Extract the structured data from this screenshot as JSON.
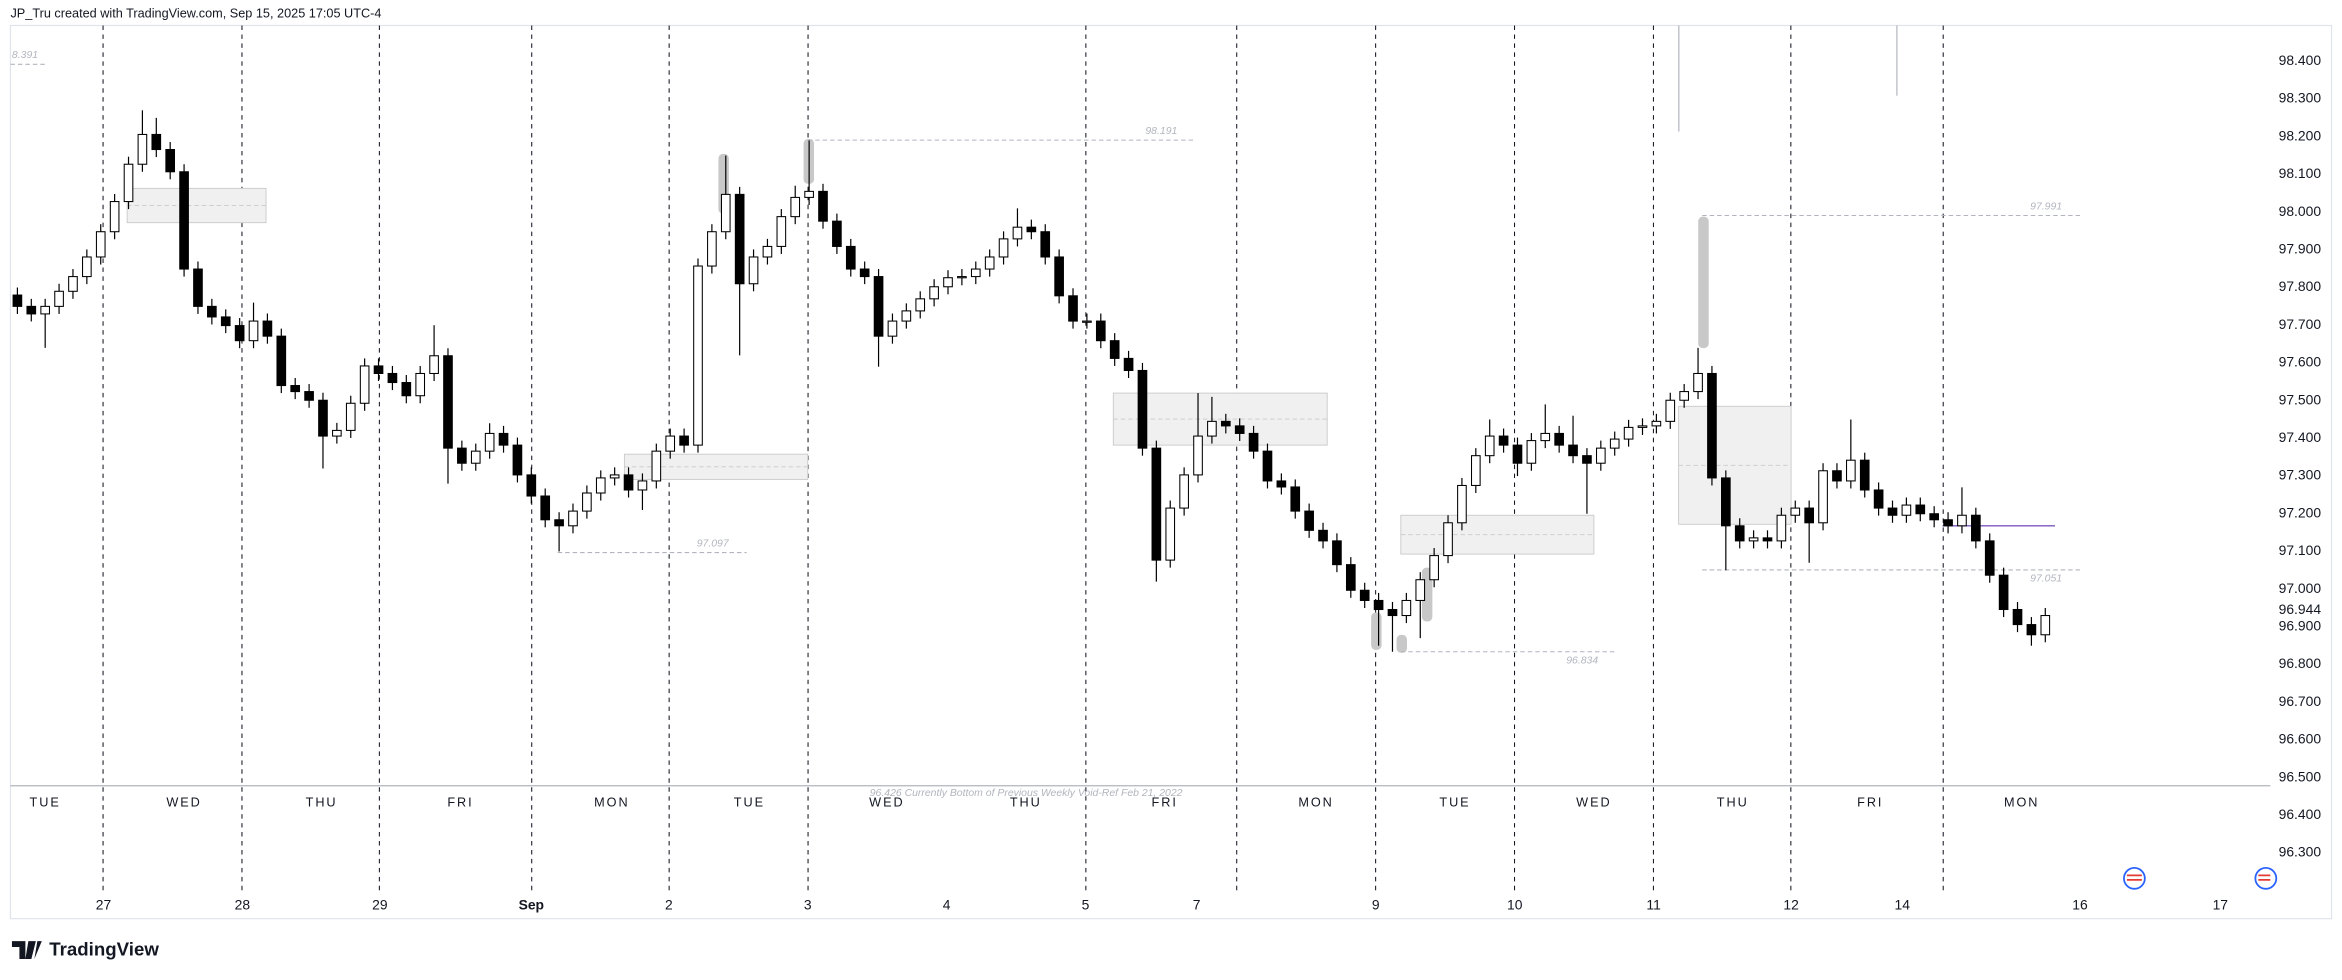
{
  "header": "JP_Tru created with TradingView.com, Sep 15, 2025 17:05 UTC-4",
  "brand": "TradingView",
  "chart_data": {
    "type": "candlestick",
    "open": [
      97.78,
      97.75,
      97.73,
      97.75,
      97.79,
      97.829,
      97.881,
      97.948,
      98.028,
      98.127,
      98.206,
      98.166,
      98.107,
      97.849,
      97.75,
      97.722,
      97.699,
      97.659,
      97.711,
      97.671,
      97.54,
      97.524,
      97.501,
      97.406,
      97.421,
      97.493,
      97.592,
      97.572,
      97.548,
      97.513,
      97.572,
      97.619,
      97.374,
      97.334,
      97.366,
      97.413,
      97.382,
      97.303,
      97.247,
      97.184,
      97.168,
      97.207,
      97.255,
      97.295,
      97.303,
      97.263,
      97.287,
      97.366,
      97.406,
      97.382,
      97.857,
      97.948,
      98.047,
      97.81,
      97.881,
      97.909,
      97.988,
      98.039,
      98.055,
      97.976,
      97.909,
      97.849,
      97.829,
      97.671,
      97.711,
      97.738,
      97.77,
      97.802,
      97.826,
      97.829,
      97.849,
      97.881,
      97.929,
      97.96,
      97.948,
      97.881,
      97.778,
      97.711,
      97.711,
      97.659,
      97.612,
      97.58,
      97.374,
      97.077,
      97.215,
      97.303,
      97.406,
      97.445,
      97.433,
      97.413,
      97.366,
      97.287,
      97.271,
      97.207,
      97.156,
      97.128,
      97.065,
      96.997,
      96.97,
      96.946,
      96.93,
      96.97,
      97.025,
      97.089,
      97.176,
      97.275,
      97.354,
      97.406,
      97.382,
      97.334,
      97.394,
      97.413,
      97.382,
      97.354,
      97.334,
      97.374,
      97.398,
      97.429,
      97.433,
      97.445,
      97.501,
      97.524,
      97.572,
      97.295,
      97.168,
      97.128,
      97.136,
      97.128,
      97.196,
      97.215,
      97.176,
      97.314,
      97.287,
      97.342,
      97.263,
      97.215,
      97.196,
      97.223,
      97.2,
      97.184,
      97.168,
      97.196,
      97.128,
      97.037,
      96.946,
      96.906,
      96.879
    ],
    "high": [
      97.8,
      97.77,
      97.77,
      97.81,
      97.849,
      97.901,
      97.968,
      98.048,
      98.147,
      98.27,
      98.25,
      98.186,
      98.127,
      97.869,
      97.77,
      97.742,
      97.719,
      97.76,
      97.731,
      97.691,
      97.56,
      97.544,
      97.521,
      97.441,
      97.513,
      97.612,
      97.612,
      97.592,
      97.568,
      97.592,
      97.7,
      97.639,
      97.394,
      97.386,
      97.44,
      97.433,
      97.402,
      97.323,
      97.267,
      97.204,
      97.227,
      97.275,
      97.315,
      97.323,
      97.323,
      97.307,
      97.386,
      97.426,
      97.426,
      97.877,
      97.968,
      98.15,
      98.067,
      97.901,
      97.929,
      98.008,
      98.07,
      98.19,
      98.075,
      97.996,
      97.929,
      97.869,
      97.849,
      97.731,
      97.758,
      97.79,
      97.822,
      97.846,
      97.849,
      97.869,
      97.901,
      97.949,
      98.01,
      97.98,
      97.968,
      97.901,
      97.798,
      97.731,
      97.731,
      97.679,
      97.632,
      97.6,
      97.394,
      97.235,
      97.323,
      97.52,
      97.51,
      97.465,
      97.453,
      97.433,
      97.386,
      97.307,
      97.291,
      97.227,
      97.176,
      97.148,
      97.085,
      97.017,
      96.99,
      96.966,
      96.99,
      97.045,
      97.109,
      97.196,
      97.295,
      97.374,
      97.45,
      97.426,
      97.402,
      97.414,
      97.49,
      97.433,
      97.46,
      97.374,
      97.394,
      97.418,
      97.449,
      97.453,
      97.465,
      97.521,
      97.544,
      97.64,
      97.592,
      97.315,
      97.188,
      97.156,
      97.156,
      97.216,
      97.235,
      97.235,
      97.334,
      97.334,
      97.45,
      97.362,
      97.283,
      97.235,
      97.243,
      97.243,
      97.22,
      97.204,
      97.27,
      97.216,
      97.148,
      97.057,
      96.966,
      96.926,
      96.95
    ],
    "low": [
      97.73,
      97.71,
      97.64,
      97.73,
      97.77,
      97.809,
      97.861,
      97.928,
      98.008,
      98.107,
      98.146,
      98.087,
      97.829,
      97.73,
      97.702,
      97.679,
      97.639,
      97.639,
      97.651,
      97.52,
      97.504,
      97.481,
      97.32,
      97.386,
      97.401,
      97.473,
      97.552,
      97.528,
      97.493,
      97.493,
      97.552,
      97.28,
      97.314,
      97.314,
      97.346,
      97.362,
      97.283,
      97.227,
      97.164,
      97.1,
      97.148,
      97.187,
      97.235,
      97.275,
      97.243,
      97.21,
      97.267,
      97.346,
      97.362,
      97.362,
      97.837,
      97.928,
      97.62,
      97.79,
      97.861,
      97.889,
      97.968,
      98.019,
      97.956,
      97.889,
      97.829,
      97.809,
      97.59,
      97.651,
      97.691,
      97.718,
      97.75,
      97.782,
      97.806,
      97.809,
      97.829,
      97.861,
      97.909,
      97.928,
      97.861,
      97.758,
      97.691,
      97.691,
      97.639,
      97.592,
      97.56,
      97.354,
      97.02,
      97.057,
      97.195,
      97.283,
      97.386,
      97.413,
      97.393,
      97.346,
      97.267,
      97.251,
      97.187,
      97.136,
      97.108,
      97.045,
      96.977,
      96.95,
      96.85,
      96.834,
      96.91,
      96.87,
      97.005,
      97.069,
      97.156,
      97.255,
      97.334,
      97.362,
      97.3,
      97.314,
      97.374,
      97.362,
      97.334,
      97.2,
      97.314,
      97.354,
      97.378,
      97.409,
      97.413,
      97.425,
      97.481,
      97.504,
      97.275,
      97.05,
      97.108,
      97.108,
      97.108,
      97.108,
      97.176,
      97.07,
      97.156,
      97.267,
      97.267,
      97.243,
      97.195,
      97.176,
      97.176,
      97.18,
      97.164,
      97.148,
      97.148,
      97.108,
      97.017,
      96.926,
      96.886,
      96.85,
      96.859
    ],
    "close": [
      97.75,
      97.73,
      97.75,
      97.79,
      97.829,
      97.881,
      97.948,
      98.028,
      98.127,
      98.206,
      98.166,
      98.107,
      97.849,
      97.75,
      97.722,
      97.699,
      97.659,
      97.711,
      97.671,
      97.54,
      97.524,
      97.501,
      97.406,
      97.421,
      97.493,
      97.592,
      97.572,
      97.548,
      97.513,
      97.572,
      97.619,
      97.374,
      97.334,
      97.366,
      97.413,
      97.382,
      97.303,
      97.247,
      97.184,
      97.168,
      97.207,
      97.255,
      97.295,
      97.303,
      97.263,
      97.287,
      97.366,
      97.406,
      97.382,
      97.857,
      97.948,
      98.047,
      97.81,
      97.881,
      97.909,
      97.988,
      98.039,
      98.055,
      97.976,
      97.909,
      97.849,
      97.829,
      97.671,
      97.711,
      97.738,
      97.77,
      97.802,
      97.826,
      97.829,
      97.849,
      97.881,
      97.929,
      97.96,
      97.948,
      97.881,
      97.778,
      97.711,
      97.711,
      97.659,
      97.612,
      97.58,
      97.374,
      97.077,
      97.215,
      97.303,
      97.406,
      97.445,
      97.433,
      97.413,
      97.366,
      97.287,
      97.271,
      97.207,
      97.156,
      97.128,
      97.065,
      96.997,
      96.97,
      96.946,
      96.93,
      96.97,
      97.025,
      97.089,
      97.176,
      97.275,
      97.354,
      97.406,
      97.382,
      97.334,
      97.394,
      97.413,
      97.382,
      97.354,
      97.334,
      97.374,
      97.398,
      97.429,
      97.433,
      97.445,
      97.501,
      97.524,
      97.572,
      97.295,
      97.168,
      97.128,
      97.136,
      97.128,
      97.196,
      97.215,
      97.176,
      97.314,
      97.287,
      97.342,
      97.263,
      97.215,
      97.196,
      97.223,
      97.2,
      97.184,
      97.168,
      97.196,
      97.128,
      97.037,
      96.946,
      96.906,
      96.879,
      96.93
    ],
    "up_color": "#ffffff",
    "down_color": "#000000",
    "xlim": [
      -0.5,
      162.2
    ],
    "xticks": [
      {
        "value": 6.2,
        "label": "27"
      },
      {
        "value": 16.2,
        "label": "28"
      },
      {
        "value": 26.1,
        "label": "29"
      },
      {
        "value": 37,
        "label": "Sep",
        "bold": true
      },
      {
        "value": 46.9,
        "label": "2"
      },
      {
        "value": 56.9,
        "label": "3"
      },
      {
        "value": 66.9,
        "label": "4"
      },
      {
        "value": 76.9,
        "label": "5"
      },
      {
        "value": 84.9,
        "label": "7"
      },
      {
        "value": 97.8,
        "label": "9"
      },
      {
        "value": 107.8,
        "label": "10"
      },
      {
        "value": 117.8,
        "label": "11"
      },
      {
        "value": 127.7,
        "label": "12"
      },
      {
        "value": 135.7,
        "label": "14"
      },
      {
        "value": 148.5,
        "label": "16"
      },
      {
        "value": 158.6,
        "label": "17"
      }
    ],
    "day_ticks": [
      {
        "value": 2.0,
        "label": "TUE"
      },
      {
        "value": 12.0,
        "label": "WED"
      },
      {
        "value": 21.9,
        "label": "THU"
      },
      {
        "value": 31.9,
        "label": "FRI"
      },
      {
        "value": 42.8,
        "label": "MON"
      },
      {
        "value": 52.7,
        "label": "TUE"
      },
      {
        "value": 62.6,
        "label": "WED"
      },
      {
        "value": 72.6,
        "label": "THU"
      },
      {
        "value": 82.6,
        "label": "FRI"
      },
      {
        "value": 93.5,
        "label": "MON"
      },
      {
        "value": 103.5,
        "label": "TUE"
      },
      {
        "value": 113.5,
        "label": "WED"
      },
      {
        "value": 123.5,
        "label": "THU"
      },
      {
        "value": 133.4,
        "label": "FRI"
      },
      {
        "value": 144.3,
        "label": "MON"
      }
    ],
    "ylim": [
      96.126,
      98.495
    ],
    "yticks": [
      {
        "value": 98.4,
        "label": "98.400"
      },
      {
        "value": 98.3,
        "label": "98.300"
      },
      {
        "value": 98.2,
        "label": "98.200"
      },
      {
        "value": 98.1,
        "label": "98.100"
      },
      {
        "value": 98.0,
        "label": "98.000"
      },
      {
        "value": 97.9,
        "label": "97.900"
      },
      {
        "value": 97.8,
        "label": "97.800"
      },
      {
        "value": 97.7,
        "label": "97.700"
      },
      {
        "value": 97.6,
        "label": "97.600"
      },
      {
        "value": 97.5,
        "label": "97.500"
      },
      {
        "value": 97.4,
        "label": "97.400"
      },
      {
        "value": 97.3,
        "label": "97.300"
      },
      {
        "value": 97.2,
        "label": "97.200"
      },
      {
        "value": 97.1,
        "label": "97.100"
      },
      {
        "value": 97.0,
        "label": "97.000"
      },
      96.944,
      {
        "value": 96.9,
        "label": "96.900"
      },
      {
        "value": 96.8,
        "label": "96.800"
      },
      {
        "value": 96.7,
        "label": "96.700"
      },
      {
        "value": 96.6,
        "label": "96.600"
      },
      {
        "value": 96.5,
        "label": "96.500"
      },
      {
        "value": 96.4,
        "label": "96.400"
      },
      {
        "value": 96.3,
        "label": "96.300"
      }
    ],
    "grid": false,
    "levels": [
      {
        "value": 98.191,
        "from": 56.9,
        "to": 84.8,
        "label_side": "above"
      },
      {
        "value": 97.991,
        "from": 121.3,
        "to": 148.5,
        "label_side": "above"
      },
      {
        "value": 97.097,
        "from": 38.9,
        "to": 52.5,
        "label_side": "above"
      },
      {
        "value": 96.834,
        "from": 99.6,
        "to": 115.1,
        "label_side": "below"
      },
      {
        "value": 97.051,
        "from": 121.3,
        "to": 148.5,
        "label_side": "below"
      }
    ],
    "zones": [
      {
        "top": 98.063,
        "bottom": 97.972,
        "from": 7.9,
        "to": 17.9
      },
      {
        "top": 97.358,
        "bottom": 97.291,
        "from": 43.7,
        "to": 56.9
      },
      {
        "top": 97.52,
        "bottom": 97.382,
        "from": 78.9,
        "to": 94.3
      },
      {
        "top": 97.196,
        "bottom": 97.093,
        "from": 99.6,
        "to": 113.5
      },
      {
        "top": 97.485,
        "bottom": 97.172,
        "from": 119.6,
        "to": 127.7
      }
    ],
    "lines": [
      {
        "value": 97.168,
        "from": 138.6,
        "to": 146.7,
        "color": "#7e57c2"
      }
    ],
    "clipped_level_label": "8.391",
    "annotation": "96.426 Currently Bottom of Previous Weekly Void-Ref Feb 21, 2022"
  }
}
